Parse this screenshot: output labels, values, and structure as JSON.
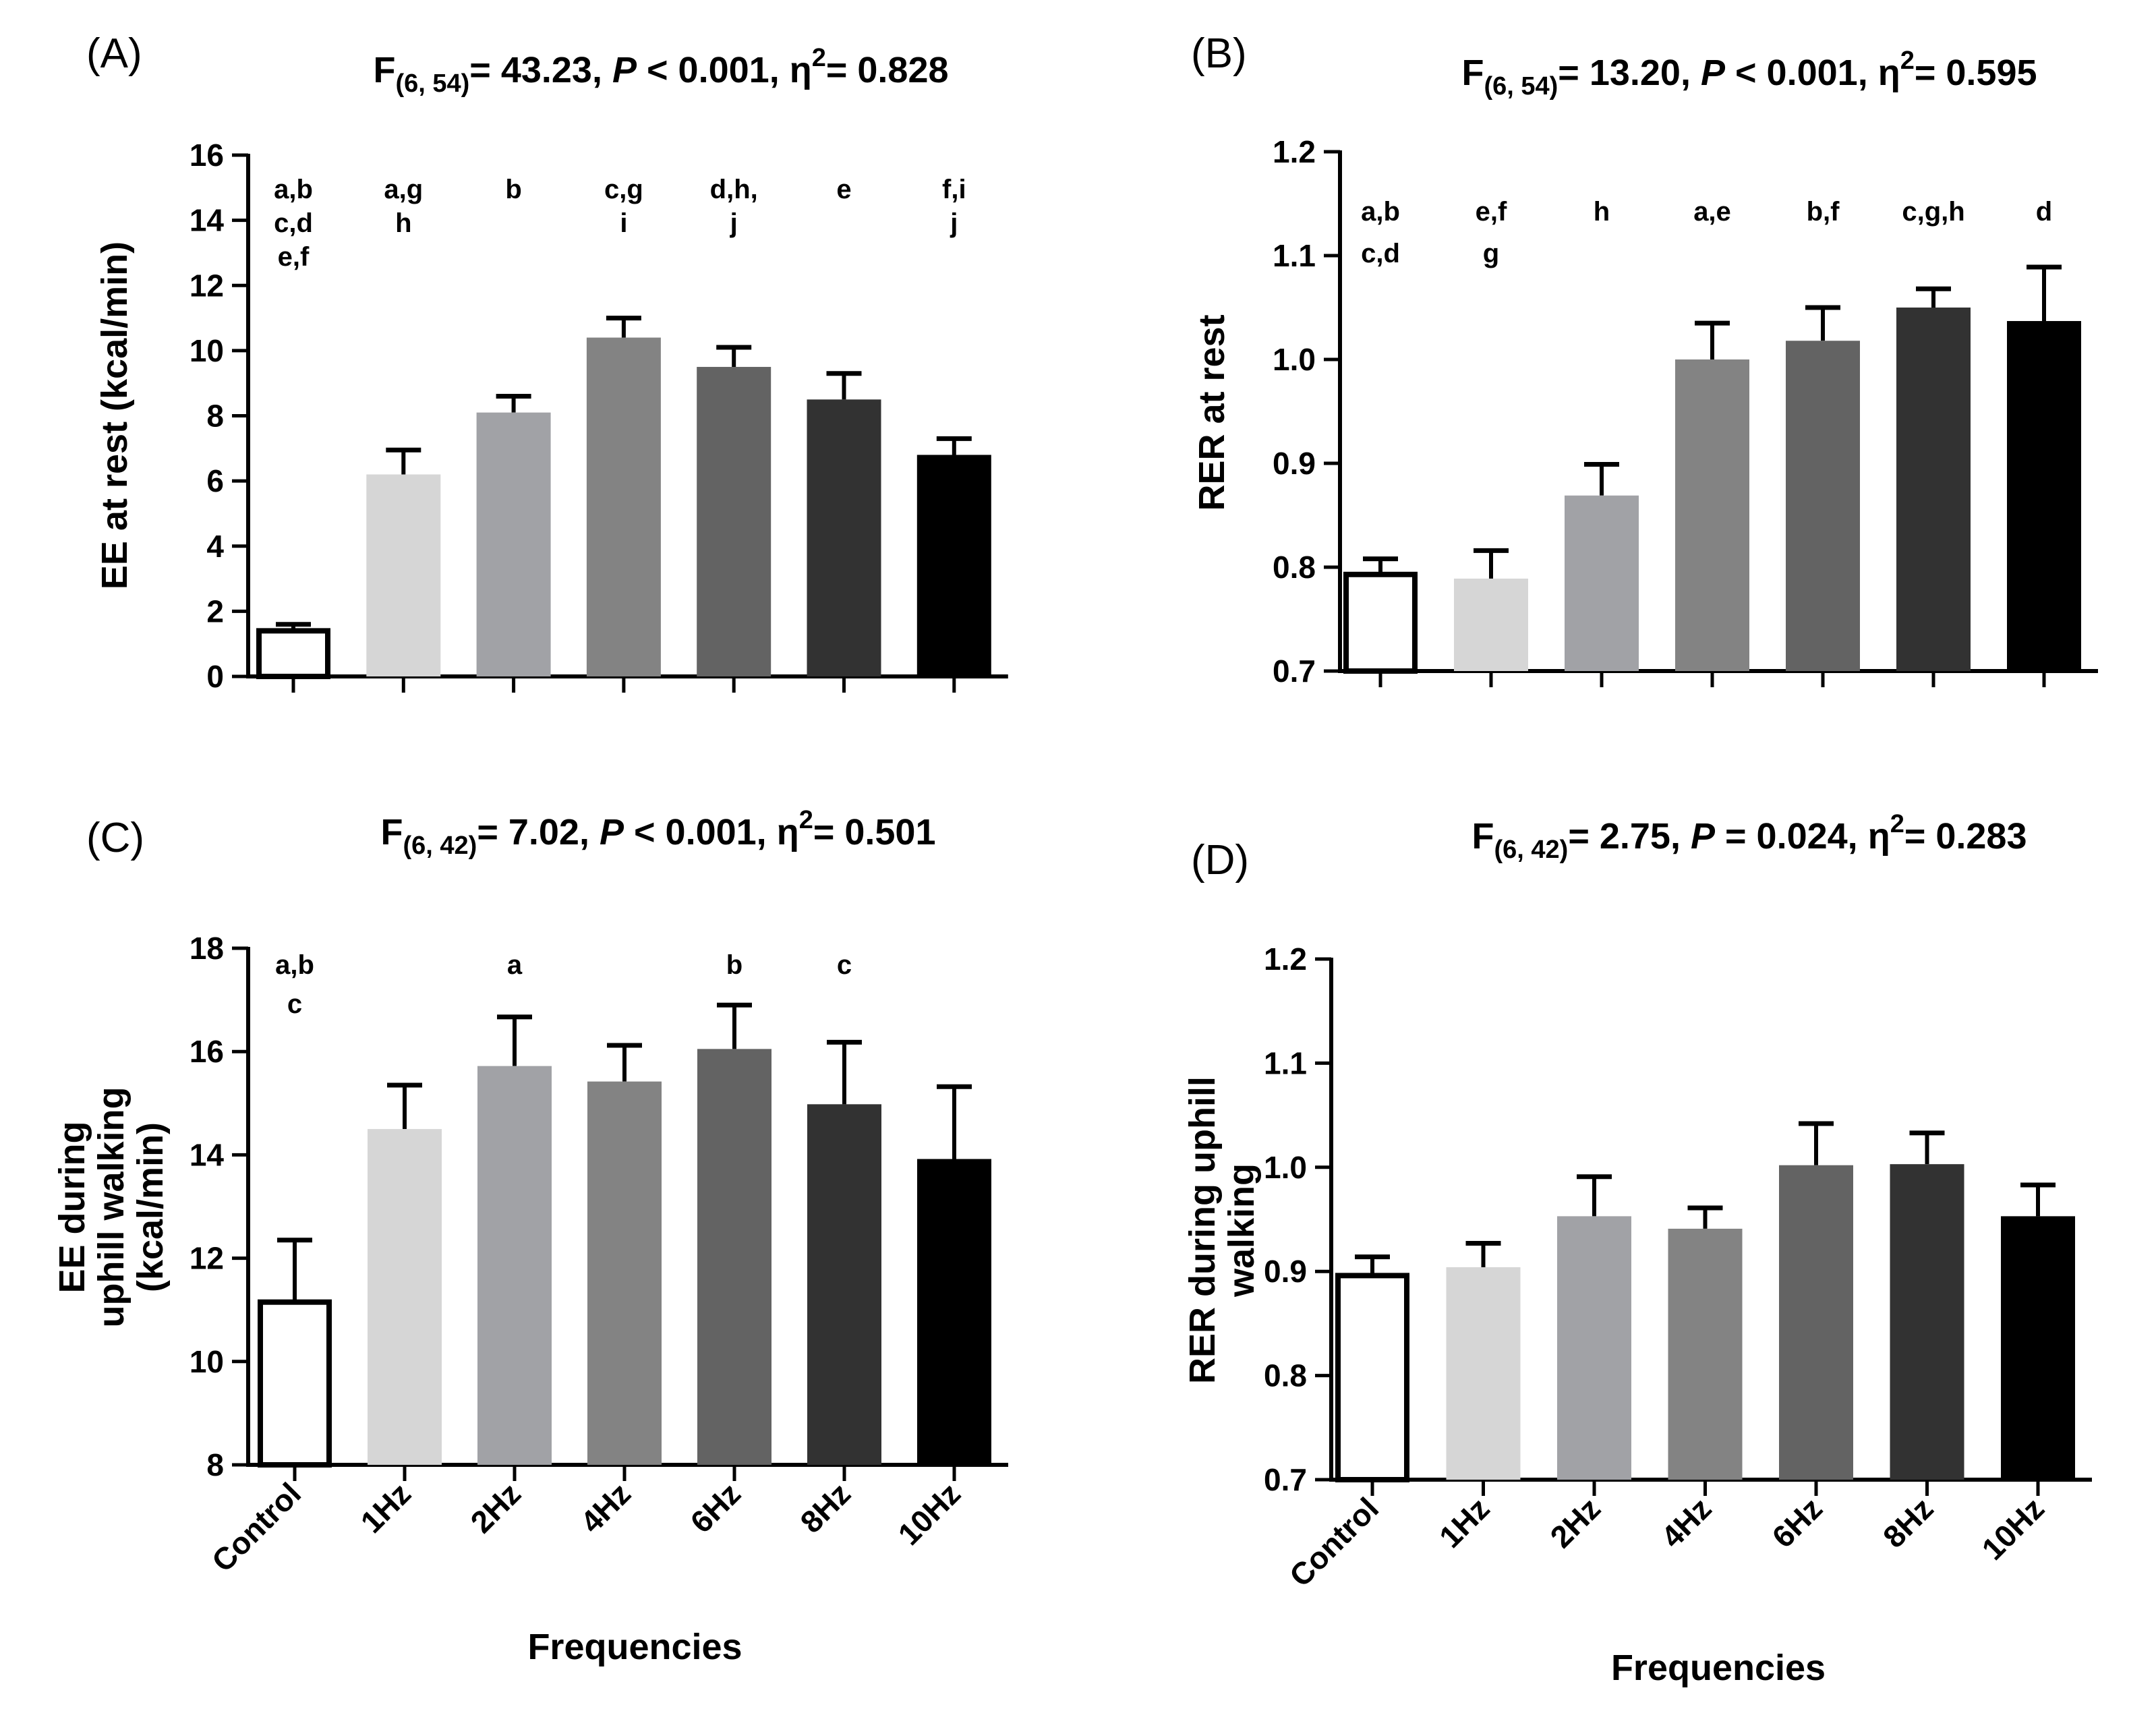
{
  "chart_data": [
    {
      "panel": "(A)",
      "type": "bar",
      "title": {
        "f_label": "F",
        "df": "(6, 54)",
        "f_value": "= 43.23, ",
        "p_label": "P",
        "p_text": " < 0.001, ",
        "eta": "η",
        "eta_exp": "2",
        "eta_text": "= 0.828"
      },
      "ylabel": [
        "EE at rest (kcal/min)"
      ],
      "xlabel": "",
      "categories": [
        "Control",
        "1Hz",
        "2Hz",
        "4Hz",
        "6Hz",
        "8Hz",
        "10Hz"
      ],
      "show_category_labels": false,
      "values": [
        1.4,
        6.2,
        8.1,
        10.4,
        9.5,
        8.5,
        6.8
      ],
      "errors": [
        0.2,
        0.75,
        0.5,
        0.6,
        0.6,
        0.8,
        0.5
      ],
      "annotations": [
        [
          "a,b",
          "c,d",
          "e,f"
        ],
        [
          "a,g",
          "h"
        ],
        [
          "b"
        ],
        [
          "c,g",
          "i"
        ],
        [
          "d,h,",
          "j"
        ],
        [
          "e"
        ],
        [
          "f,i",
          "j"
        ]
      ],
      "ylim": [
        0,
        16
      ],
      "yticks": [
        "0",
        "2",
        "4",
        "6",
        "8",
        "10",
        "12",
        "14",
        "16"
      ],
      "colors": [
        "#ffffff",
        "#d6d6d6",
        "#a1a2a6",
        "#838383",
        "#636363",
        "#323232",
        "#000000"
      ]
    },
    {
      "panel": "(B)",
      "type": "bar",
      "title": {
        "f_label": "F",
        "df": "(6, 54)",
        "f_value": "= 13.20, ",
        "p_label": "P",
        "p_text": " < 0.001, ",
        "eta": "η",
        "eta_exp": "2",
        "eta_text": "= 0.595"
      },
      "ylabel": [
        "RER at rest"
      ],
      "xlabel": "",
      "categories": [
        "Control",
        "1Hz",
        "2Hz",
        "4Hz",
        "6Hz",
        "8Hz",
        "10Hz"
      ],
      "show_category_labels": false,
      "values": [
        0.793,
        0.789,
        0.869,
        1.0,
        1.018,
        1.05,
        1.037
      ],
      "errors": [
        0.015,
        0.027,
        0.03,
        0.035,
        0.032,
        0.018,
        0.052
      ],
      "annotations": [
        [
          "a,b",
          "c,d"
        ],
        [
          "e,f",
          "g"
        ],
        [
          "h"
        ],
        [
          "a,e"
        ],
        [
          "b,f"
        ],
        [
          "c,g,h"
        ],
        [
          "d"
        ]
      ],
      "ylim": [
        0.7,
        1.2
      ],
      "yticks": [
        "0.7",
        "0.8",
        "0.9",
        "1.0",
        "1.1",
        "1.2"
      ],
      "colors": [
        "#ffffff",
        "#d6d6d6",
        "#a1a2a6",
        "#838383",
        "#636363",
        "#323232",
        "#000000"
      ]
    },
    {
      "panel": "(C)",
      "type": "bar",
      "title": {
        "f_label": "F",
        "df": "(6, 42)",
        "f_value": "= 7.02, ",
        "p_label": "P",
        "p_text": " < 0.001, ",
        "eta": "η",
        "eta_exp": "2",
        "eta_text": "= 0.501"
      },
      "ylabel": [
        "EE during",
        "uphill walking",
        "(kcal/min)"
      ],
      "xlabel": "Frequencies",
      "categories": [
        "Control",
        "1Hz",
        "2Hz",
        "4Hz",
        "6Hz",
        "8Hz",
        "10Hz"
      ],
      "show_category_labels": true,
      "values": [
        11.15,
        14.5,
        15.72,
        15.42,
        16.05,
        14.98,
        13.92
      ],
      "errors": [
        1.2,
        0.85,
        0.95,
        0.7,
        0.85,
        1.2,
        1.4
      ],
      "annotations": [
        [
          "a,b",
          "c"
        ],
        [],
        [
          "a"
        ],
        [],
        [
          "b"
        ],
        [
          "c"
        ],
        []
      ],
      "ylim": [
        8,
        18
      ],
      "yticks": [
        "8",
        "10",
        "12",
        "14",
        "16",
        "18"
      ],
      "colors": [
        "#ffffff",
        "#d6d6d6",
        "#a1a2a6",
        "#838383",
        "#636363",
        "#323232",
        "#000000"
      ]
    },
    {
      "panel": "(D)",
      "type": "bar",
      "title": {
        "f_label": "F",
        "df": "(6, 42)",
        "f_value": "= 2.75, ",
        "p_label": "P",
        "p_text": " = 0.024, ",
        "eta": "η",
        "eta_exp": "2",
        "eta_text": "= 0.283"
      },
      "ylabel": [
        "RER during uphill",
        "walking"
      ],
      "xlabel": "Frequencies",
      "categories": [
        "Control",
        "1Hz",
        "2Hz",
        "4Hz",
        "6Hz",
        "8Hz",
        "10Hz"
      ],
      "show_category_labels": true,
      "values": [
        0.896,
        0.904,
        0.953,
        0.941,
        1.002,
        1.003,
        0.953
      ],
      "errors": [
        0.018,
        0.023,
        0.038,
        0.02,
        0.04,
        0.03,
        0.03
      ],
      "annotations": [
        [],
        [],
        [],
        [],
        [],
        [],
        []
      ],
      "ylim": [
        0.7,
        1.2
      ],
      "yticks": [
        "0.7",
        "0.8",
        "0.9",
        "1.0",
        "1.1",
        "1.2"
      ],
      "colors": [
        "#ffffff",
        "#d6d6d6",
        "#a1a2a6",
        "#838383",
        "#636363",
        "#323232",
        "#000000"
      ]
    }
  ]
}
